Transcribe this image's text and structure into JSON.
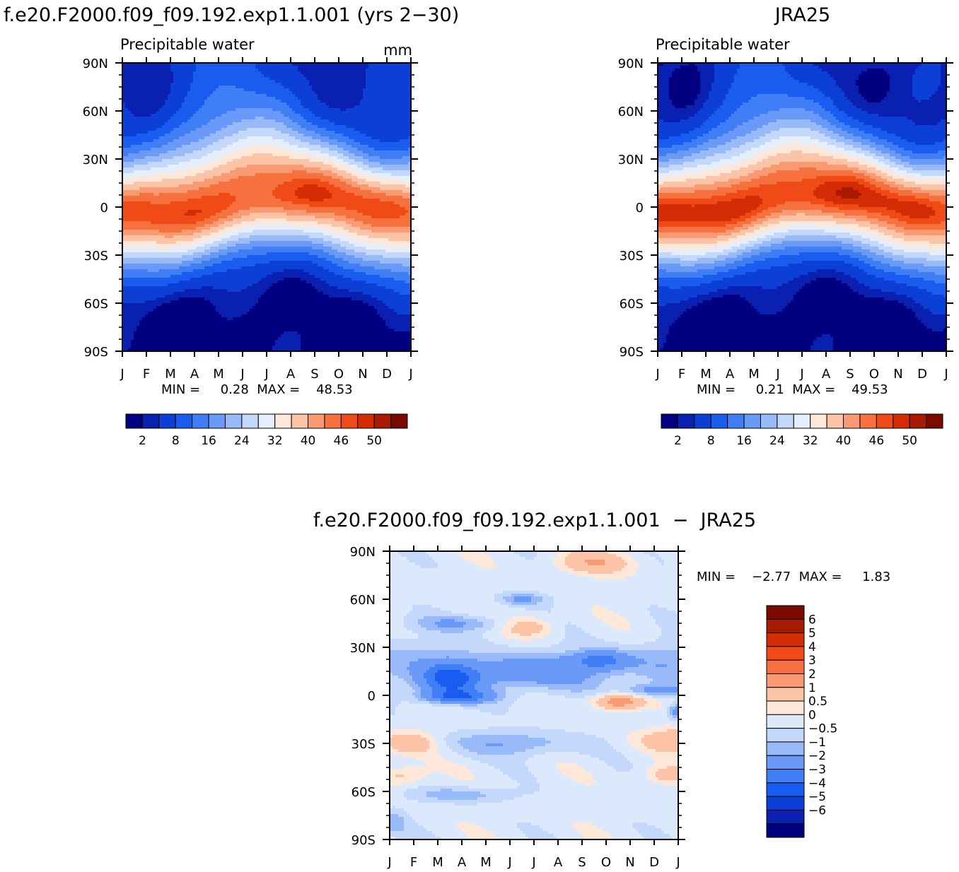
{
  "titles": {
    "model_run": "f.e20.F2000.f09_f09.192.exp1.1.001 (yrs 2−30)",
    "reference": "JRA25",
    "difference": "f.e20.F2000.f09_f09.192.exp1.1.001  −  JRA25"
  },
  "palettes": {
    "full": [
      "#000080",
      "#0a20b0",
      "#0b3fd6",
      "#1a5cf0",
      "#3f7ef5",
      "#6a9af7",
      "#98baf9",
      "#c4d8fb",
      "#e4eefd",
      "#fde7d8",
      "#fcc3a6",
      "#f99a72",
      "#f7713f",
      "#f04a16",
      "#d42c05",
      "#a91a02",
      "#7a0a00"
    ],
    "diff": [
      "#000080",
      "#0a20b0",
      "#0b3fd6",
      "#1a5cf0",
      "#3f7ef5",
      "#6a9af7",
      "#98baf9",
      "#c4d8fb",
      "#dce9fc",
      "#fde7d8",
      "#fcc3a6",
      "#f99a72",
      "#f7713f",
      "#f04a16",
      "#d42c05",
      "#a91a02",
      "#7a0a00"
    ]
  },
  "chart_data": [
    {
      "id": "model",
      "type": "heatmap",
      "subtitle": "Precipitable water",
      "units": "mm",
      "x_ticks": [
        "J",
        "F",
        "M",
        "A",
        "M",
        "J",
        "J",
        "A",
        "S",
        "O",
        "N",
        "D",
        "J"
      ],
      "y_ticks": [
        "90N",
        "60N",
        "30N",
        "0",
        "30S",
        "60S",
        "90S"
      ],
      "ylim": [
        -90,
        90
      ],
      "stats": "MIN =     0.28  MAX =    48.53",
      "levels": [
        2,
        4,
        8,
        12,
        16,
        20,
        24,
        28,
        32,
        36,
        40,
        43,
        46,
        48,
        50
      ],
      "colorbar_labels": [
        "2",
        "8",
        "16",
        "24",
        "32",
        "40",
        "46",
        "50"
      ],
      "field": {
        "peak": 47.0,
        "itcz_amp": 7,
        "itcz_phase_month": 7.2,
        "north_pole": 3.5,
        "south_pole": 0.6,
        "north_summer_boost": 1.5
      }
    },
    {
      "id": "obs",
      "type": "heatmap",
      "subtitle": "Precipitable water",
      "units": "",
      "x_ticks": [
        "J",
        "F",
        "M",
        "A",
        "M",
        "J",
        "J",
        "A",
        "S",
        "O",
        "N",
        "D",
        "J"
      ],
      "y_ticks": [
        "90N",
        "60N",
        "30N",
        "0",
        "30S",
        "60S",
        "90S"
      ],
      "ylim": [
        -90,
        90
      ],
      "stats": "MIN =     0.21  MAX =    49.53",
      "levels": [
        2,
        4,
        8,
        12,
        16,
        20,
        24,
        28,
        32,
        36,
        40,
        43,
        46,
        48,
        50
      ],
      "colorbar_labels": [
        "2",
        "8",
        "16",
        "24",
        "32",
        "40",
        "46",
        "50"
      ],
      "field": {
        "peak": 48.5,
        "itcz_amp": 7,
        "itcz_phase_month": 7.0,
        "north_pole": 2.5,
        "south_pole": 0.4,
        "north_summer_boost": 1.4
      }
    },
    {
      "id": "diff",
      "type": "heatmap",
      "subtitle": "",
      "units": "",
      "x_ticks": [
        "J",
        "F",
        "M",
        "A",
        "M",
        "J",
        "J",
        "A",
        "S",
        "O",
        "N",
        "D",
        "J"
      ],
      "y_ticks": [
        "90N",
        "60N",
        "30N",
        "0",
        "30S",
        "60S",
        "90S"
      ],
      "ylim": [
        -90,
        90
      ],
      "stats": "MIN =    −2.77  MAX =     1.83",
      "levels": [
        -6,
        -5,
        -4,
        -3,
        -2,
        -1,
        -0.5,
        0,
        0.5,
        1,
        2,
        3,
        4,
        5,
        6
      ],
      "colorbar_labels": [
        "6",
        "5",
        "4",
        "3",
        "2",
        "1",
        "0.5",
        "0",
        "−0.5",
        "−1",
        "−2",
        "−3",
        "−4",
        "−5",
        "−6"
      ],
      "anomalies": [
        {
          "month": 2.5,
          "lat": 10,
          "value": -3.1,
          "w_month": 1.2,
          "w_lat": 10
        },
        {
          "month": 6.0,
          "lat": 15,
          "value": -2.0,
          "w_month": 3.0,
          "w_lat": 12
        },
        {
          "month": 8.8,
          "lat": 22,
          "value": -2.0,
          "w_month": 1.2,
          "w_lat": 6
        },
        {
          "month": 2.8,
          "lat": -1,
          "value": -2.5,
          "w_month": 1.5,
          "w_lat": 4
        },
        {
          "month": 9.5,
          "lat": -4,
          "value": 2.6,
          "w_month": 1.0,
          "w_lat": 5
        },
        {
          "month": 12.0,
          "lat": -10,
          "value": -2.1,
          "w_month": 0.4,
          "w_lat": 5
        },
        {
          "month": 11.0,
          "lat": 3,
          "value": -1.6,
          "w_month": 1.3,
          "w_lat": 4
        },
        {
          "month": 8.5,
          "lat": 83,
          "value": 1.6,
          "w_month": 1.5,
          "w_lat": 7
        },
        {
          "month": 5.8,
          "lat": 43,
          "value": 1.3,
          "w_month": 1.0,
          "w_lat": 6
        },
        {
          "month": 5.5,
          "lat": 60,
          "value": -1.3,
          "w_month": 1.0,
          "w_lat": 4
        },
        {
          "month": 0.8,
          "lat": -30,
          "value": 1.6,
          "w_month": 1.1,
          "w_lat": 7
        },
        {
          "month": 12.0,
          "lat": -28,
          "value": 1.7,
          "w_month": 1.6,
          "w_lat": 7
        },
        {
          "month": 5.0,
          "lat": -30,
          "value": -1.2,
          "w_month": 3.0,
          "w_lat": 8
        },
        {
          "month": 3.0,
          "lat": -62,
          "value": -1.1,
          "w_month": 2.0,
          "w_lat": 5
        },
        {
          "month": 11.5,
          "lat": -50,
          "value": 1.1,
          "w_month": 1.0,
          "w_lat": 6
        },
        {
          "month": 0.5,
          "lat": -50,
          "value": 1.1,
          "w_month": 1.0,
          "w_lat": 6
        },
        {
          "month": 0.2,
          "lat": -80,
          "value": -1.0,
          "w_month": 0.5,
          "w_lat": 8
        },
        {
          "month": 3.0,
          "lat": 45,
          "value": -1.1,
          "w_month": 2.2,
          "w_lat": 5
        },
        {
          "month": 0.5,
          "lat": 20,
          "value": -1.0,
          "w_month": 2.5,
          "w_lat": 18
        },
        {
          "month": 11.5,
          "lat": 20,
          "value": -1.1,
          "w_month": 2.0,
          "w_lat": 15
        }
      ],
      "background": 0.25
    }
  ]
}
